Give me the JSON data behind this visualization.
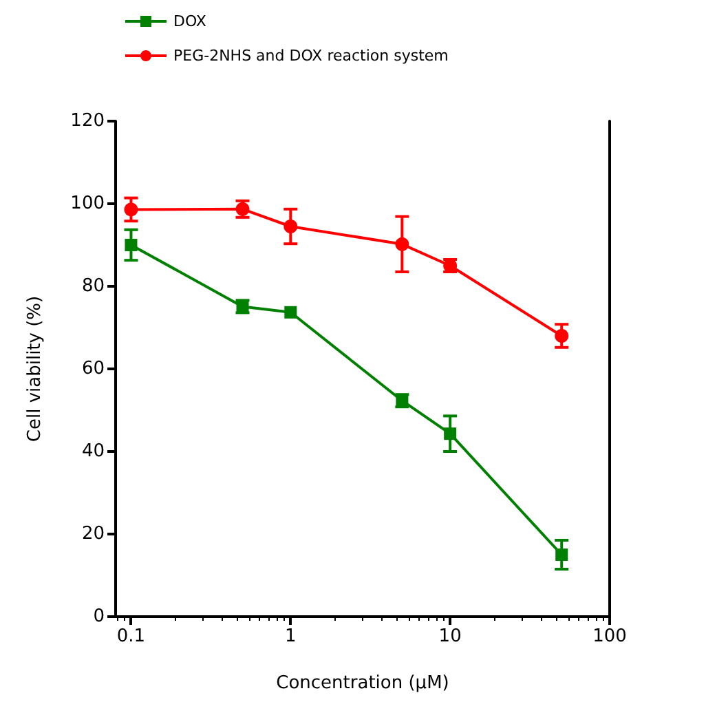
{
  "chart_data": {
    "type": "line",
    "xlabel": "Concentration (μM)",
    "ylabel": "Cell viability (%)",
    "log": "x",
    "xlim": [
      0.08,
      100
    ],
    "xticks": [
      0.1,
      1,
      10,
      100
    ],
    "ylim": [
      0,
      120
    ],
    "yticks": [
      0,
      20,
      40,
      60,
      80,
      100,
      120
    ],
    "grid": false,
    "legend": "top left",
    "x": [
      0.1,
      0.5,
      1,
      5,
      10,
      50
    ],
    "series": [
      {
        "name": "DOX",
        "color": "#008000",
        "marker": "square",
        "values": [
          90.0,
          75.1,
          73.7,
          52.3,
          44.3,
          15.0
        ],
        "errors": [
          3.7,
          1.5,
          null,
          1.5,
          4.3,
          3.5
        ]
      },
      {
        "name": "PEG-2NHS and DOX reaction system",
        "color": "#ff0000",
        "marker": "circle",
        "values": [
          98.6,
          98.7,
          94.5,
          90.2,
          85.0,
          68.0
        ],
        "errors": [
          2.8,
          2,
          4.2,
          6.7,
          1.5,
          2.8
        ]
      }
    ]
  }
}
